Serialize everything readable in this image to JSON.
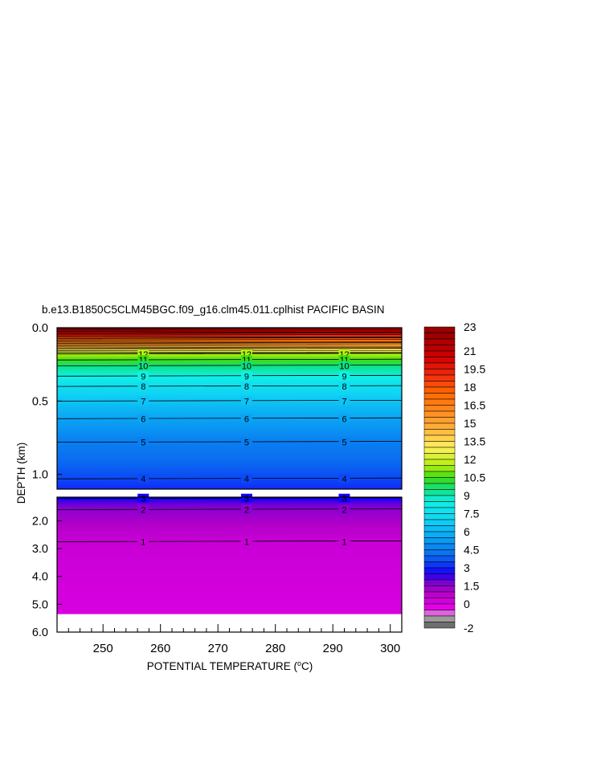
{
  "chart_data": {
    "type": "heatmap",
    "title": "b.e13.B1850C5CLM45BGC.f09_g16.clm45.011.cplhist PACIFIC BASIN",
    "xlabel": "POTENTIAL TEMPERATURE (°C)",
    "xlabel_parts": {
      "pre": "POTENTIAL TEMPERATURE (",
      "sup": "o",
      "post": "C)"
    },
    "ylabel": "DEPTH (km)",
    "xlim": [
      242,
      302
    ],
    "x_ticks": [
      "250",
      "260",
      "270",
      "280",
      "290",
      "300"
    ],
    "x_tick_values": [
      250,
      260,
      270,
      280,
      290,
      300
    ],
    "upper_panel": {
      "ylim": [
        0.0,
        1.1
      ],
      "y_ticks": [
        "0.0",
        "0.5",
        "1.0"
      ],
      "y_tick_values": [
        0.0,
        0.5,
        1.0
      ]
    },
    "lower_panel": {
      "ylim": [
        1.15,
        6.0
      ],
      "y_ticks": [
        "2.0",
        "3.0",
        "4.0",
        "5.0",
        "6.0"
      ],
      "y_tick_values": [
        2.0,
        3.0,
        4.0,
        5.0,
        6.0
      ],
      "data_bottom_depth": 5.35
    },
    "contour_label_x": [
      257,
      275,
      292
    ],
    "contours": [
      {
        "value": 12,
        "depth": 0.18,
        "label": "12"
      },
      {
        "value": 11,
        "depth": 0.22,
        "label": "11"
      },
      {
        "value": 10,
        "depth": 0.26,
        "label": "10"
      },
      {
        "value": 9,
        "depth": 0.33,
        "label": "9"
      },
      {
        "value": 8,
        "depth": 0.4,
        "label": "8"
      },
      {
        "value": 7,
        "depth": 0.5,
        "label": "7"
      },
      {
        "value": 6,
        "depth": 0.62,
        "label": "6"
      },
      {
        "value": 5,
        "depth": 0.78,
        "label": "5"
      },
      {
        "value": 4,
        "depth": 1.03,
        "label": "4"
      },
      {
        "value": 3,
        "depth": 1.2,
        "label": "3"
      },
      {
        "value": 2,
        "depth": 1.6,
        "label": "2"
      },
      {
        "value": 1,
        "depth": 2.75,
        "label": "1"
      }
    ],
    "colorbar": {
      "labels": [
        "23",
        "21",
        "19.5",
        "18",
        "16.5",
        "15",
        "13.5",
        "12",
        "10.5",
        "9",
        "7.5",
        "6",
        "4.5",
        "3",
        "1.5",
        "0",
        "-2"
      ],
      "label_values": [
        23,
        21,
        19.5,
        18,
        16.5,
        15,
        13.5,
        12,
        10.5,
        9,
        7.5,
        6,
        4.5,
        3,
        1.5,
        0,
        -2
      ]
    }
  }
}
